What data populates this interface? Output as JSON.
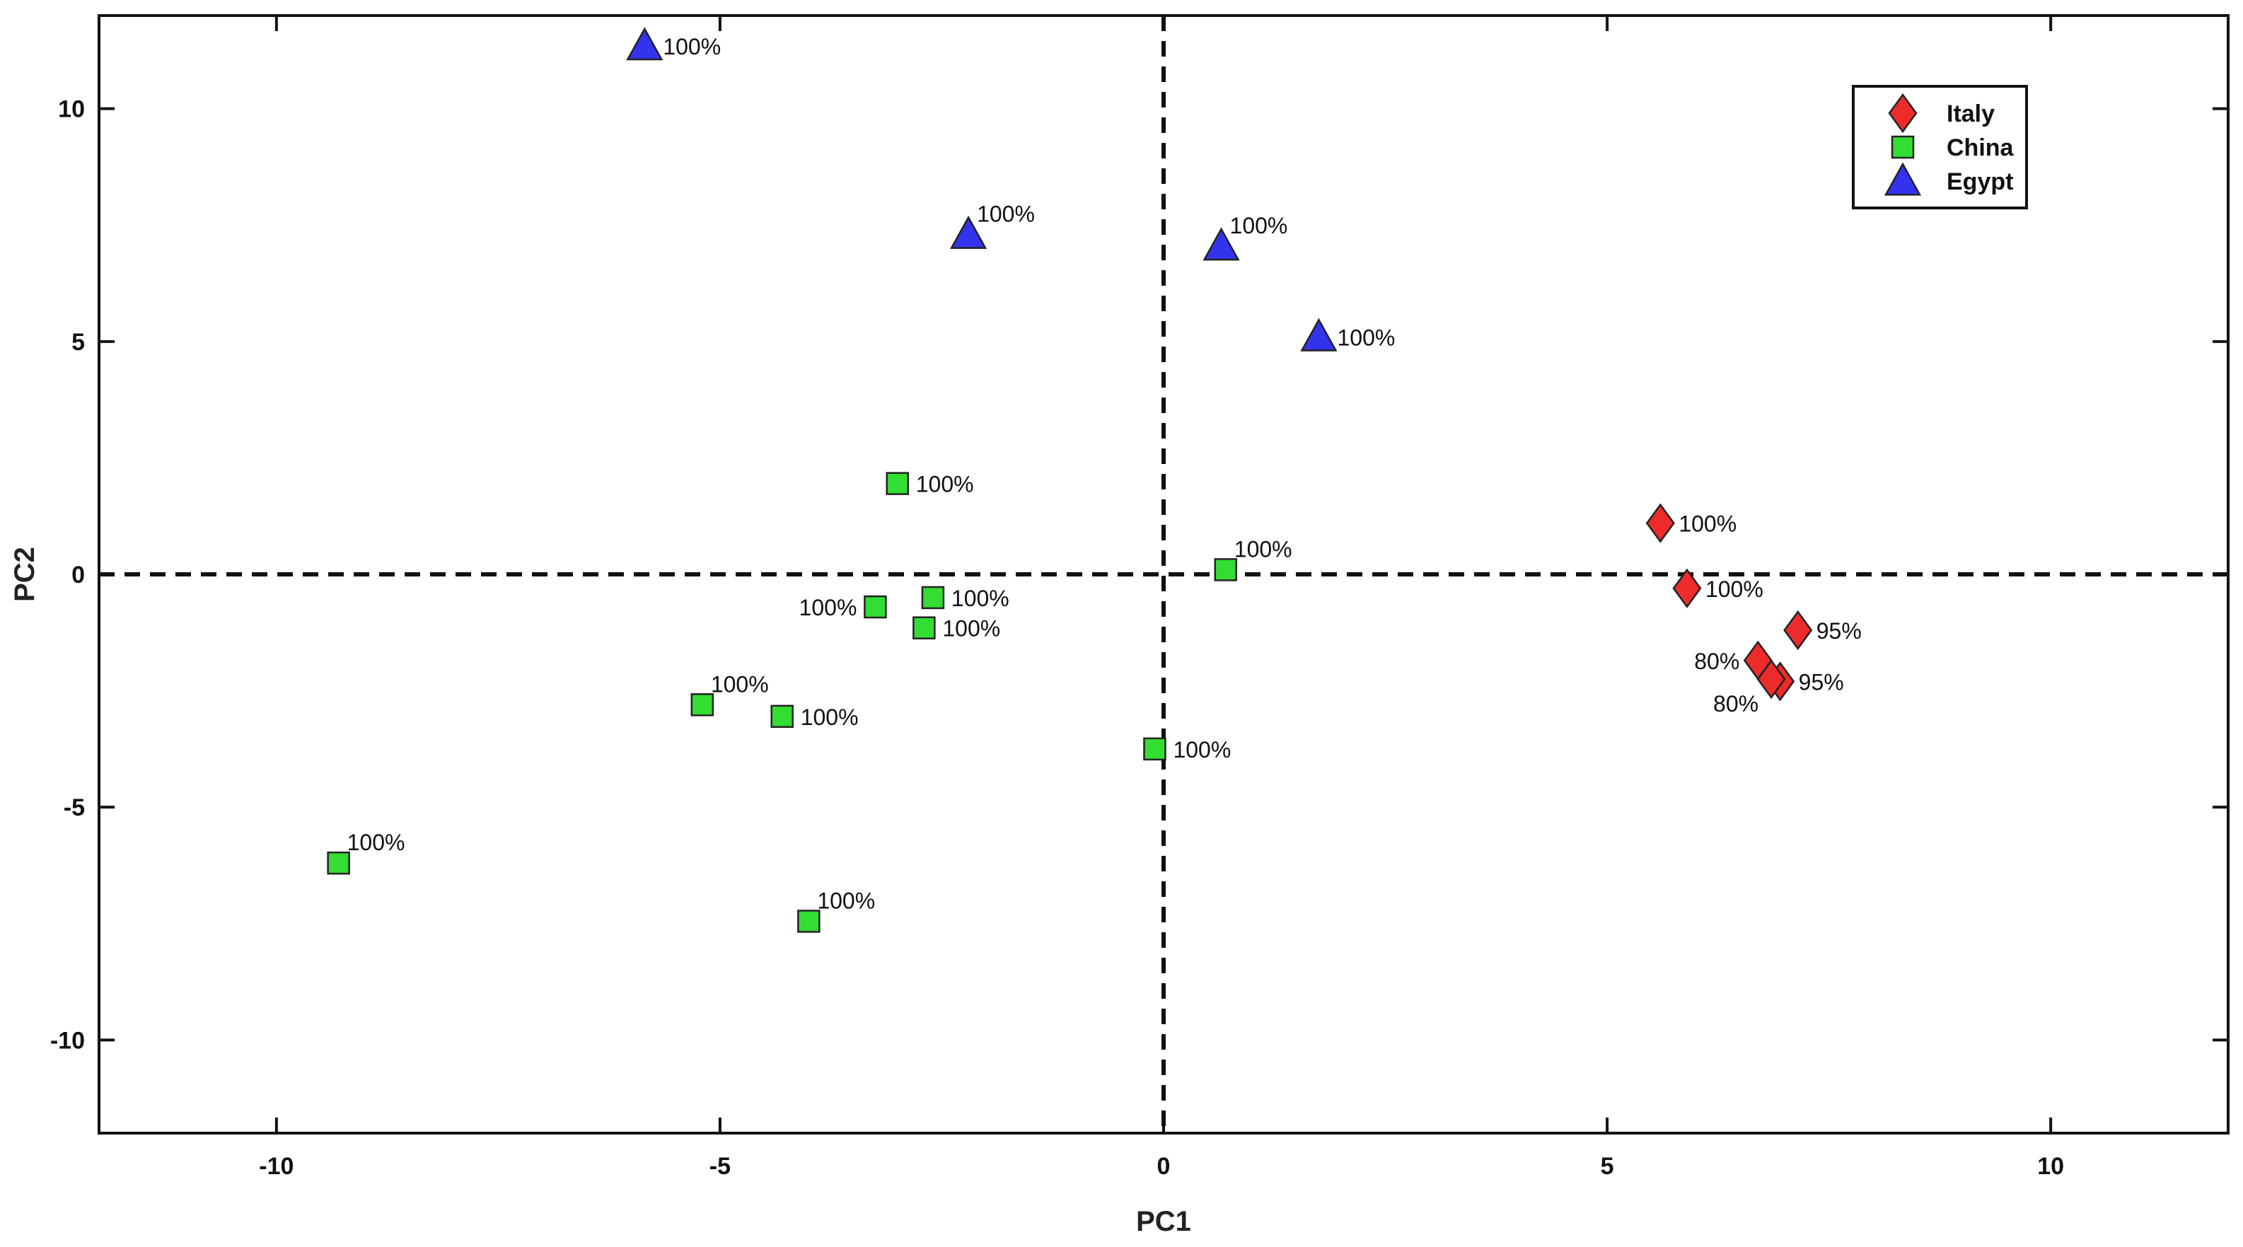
{
  "chart_data": {
    "type": "scatter",
    "title": "",
    "xlabel": "PC1",
    "ylabel": "PC2",
    "xlim": [
      -12,
      12
    ],
    "ylim": [
      -12,
      12
    ],
    "xticks": [
      -10,
      -5,
      0,
      5,
      10
    ],
    "xtick_labels": [
      "-10",
      "-5",
      "0",
      "5",
      "10"
    ],
    "yticks": [
      -10,
      -5,
      0,
      5,
      10
    ],
    "ytick_labels": [
      "-10",
      "-5",
      "0",
      "5",
      "10"
    ],
    "grid": false,
    "reference_lines": {
      "x": 0,
      "y": 0,
      "style": "dashed"
    },
    "legend_position": "top-right",
    "series": [
      {
        "name": "Italy",
        "marker": "diamond",
        "color": "#ee2b2b",
        "points": [
          {
            "x": 5.6,
            "y": 1.1,
            "label": "100%",
            "label_side": "right"
          },
          {
            "x": 5.9,
            "y": -0.3,
            "label": "100%",
            "label_side": "right"
          },
          {
            "x": 7.15,
            "y": -1.2,
            "label": "95%",
            "label_side": "right"
          },
          {
            "x": 6.7,
            "y": -1.85,
            "label": "80%",
            "label_side": "left"
          },
          {
            "x": 6.95,
            "y": -2.3,
            "label": "95%",
            "label_side": "right"
          },
          {
            "x": 6.85,
            "y": -2.25,
            "label": "80%",
            "label_side": "below-left"
          }
        ]
      },
      {
        "name": "China",
        "marker": "square",
        "color": "#33dd33",
        "points": [
          {
            "x": -3.0,
            "y": 1.95,
            "label": "100%",
            "label_side": "right"
          },
          {
            "x": 0.7,
            "y": 0.1,
            "label": "100%",
            "label_side": "above-right"
          },
          {
            "x": -2.6,
            "y": -0.5,
            "label": "100%",
            "label_side": "right"
          },
          {
            "x": -3.25,
            "y": -0.7,
            "label": "100%",
            "label_side": "left"
          },
          {
            "x": -2.7,
            "y": -1.15,
            "label": "100%",
            "label_side": "right"
          },
          {
            "x": -5.2,
            "y": -2.8,
            "label": "100%",
            "label_side": "above-right"
          },
          {
            "x": -4.3,
            "y": -3.05,
            "label": "100%",
            "label_side": "right"
          },
          {
            "x": -0.1,
            "y": -3.75,
            "label": "100%",
            "label_side": "right"
          },
          {
            "x": -9.3,
            "y": -6.2,
            "label": "100%",
            "label_side": "above-right"
          },
          {
            "x": -4.0,
            "y": -7.45,
            "label": "100%",
            "label_side": "above-right"
          }
        ]
      },
      {
        "name": "Egypt",
        "marker": "triangle",
        "color": "#3333ee",
        "points": [
          {
            "x": -5.85,
            "y": 11.35,
            "label": "100%",
            "label_side": "right"
          },
          {
            "x": -2.2,
            "y": 7.3,
            "label": "100%",
            "label_side": "above-right"
          },
          {
            "x": 0.65,
            "y": 7.05,
            "label": "100%",
            "label_side": "above-right"
          },
          {
            "x": 1.75,
            "y": 5.1,
            "label": "100%",
            "label_side": "right"
          }
        ]
      }
    ]
  }
}
